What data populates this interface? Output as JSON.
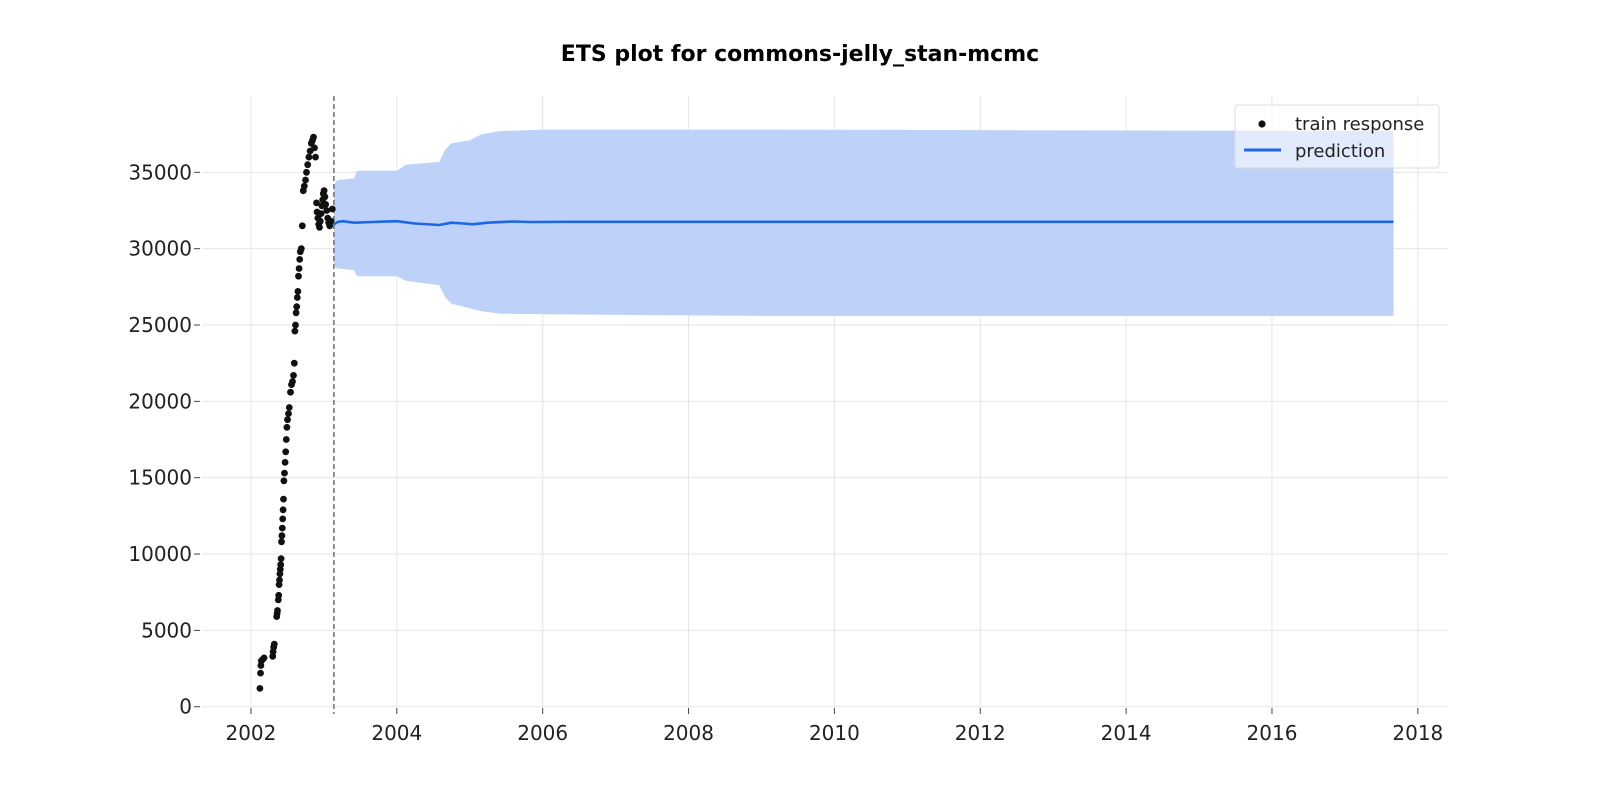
{
  "chart_data": {
    "type": "line",
    "title": "ETS plot for commons-jelly_stan-mcmc",
    "xlabel": "",
    "ylabel": "",
    "x_axis_type": "date",
    "xlim": [
      "2001-05-01",
      "2018-06-01"
    ],
    "ylim": [
      -1000,
      40000
    ],
    "x_ticks": [
      "2002",
      "2004",
      "2006",
      "2008",
      "2010",
      "2012",
      "2014",
      "2016",
      "2018"
    ],
    "y_ticks": [
      "0",
      "5000",
      "10000",
      "15000",
      "20000",
      "25000",
      "30000",
      "35000"
    ],
    "grid": true,
    "legend_position": "top-right",
    "train_end_date": "2003-02-20",
    "colors": {
      "train_points": "#111111",
      "prediction_line": "#1f66e5",
      "interval_fill": "#bed2f9",
      "divider": "#777777"
    },
    "series": [
      {
        "name": "train response",
        "kind": "scatter",
        "points": [
          [
            "2002-02-15",
            1200
          ],
          [
            "2002-02-18",
            2200
          ],
          [
            "2002-02-20",
            2700
          ],
          [
            "2002-02-22",
            3000
          ],
          [
            "2002-03-01",
            3100
          ],
          [
            "2002-03-08",
            3200
          ],
          [
            "2002-04-20",
            3300
          ],
          [
            "2002-04-22",
            3600
          ],
          [
            "2002-04-25",
            3900
          ],
          [
            "2002-04-28",
            4100
          ],
          [
            "2002-05-10",
            5900
          ],
          [
            "2002-05-12",
            6100
          ],
          [
            "2002-05-14",
            6300
          ],
          [
            "2002-05-18",
            7000
          ],
          [
            "2002-05-20",
            7300
          ],
          [
            "2002-05-22",
            8000
          ],
          [
            "2002-05-24",
            8300
          ],
          [
            "2002-05-26",
            8700
          ],
          [
            "2002-05-28",
            9000
          ],
          [
            "2002-05-30",
            9300
          ],
          [
            "2002-06-01",
            9700
          ],
          [
            "2002-06-03",
            10800
          ],
          [
            "2002-06-05",
            11200
          ],
          [
            "2002-06-07",
            11700
          ],
          [
            "2002-06-09",
            12300
          ],
          [
            "2002-06-11",
            12900
          ],
          [
            "2002-06-13",
            13600
          ],
          [
            "2002-06-15",
            14800
          ],
          [
            "2002-06-18",
            15300
          ],
          [
            "2002-06-21",
            16000
          ],
          [
            "2002-06-24",
            16700
          ],
          [
            "2002-06-27",
            17500
          ],
          [
            "2002-06-30",
            18300
          ],
          [
            "2002-07-03",
            18800
          ],
          [
            "2002-07-08",
            19200
          ],
          [
            "2002-07-12",
            19600
          ],
          [
            "2002-07-18",
            20600
          ],
          [
            "2002-07-23",
            21100
          ],
          [
            "2002-07-28",
            21300
          ],
          [
            "2002-08-02",
            21700
          ],
          [
            "2002-08-06",
            22500
          ],
          [
            "2002-08-09",
            24600
          ],
          [
            "2002-08-12",
            25000
          ],
          [
            "2002-08-15",
            25800
          ],
          [
            "2002-08-18",
            26200
          ],
          [
            "2002-08-21",
            26800
          ],
          [
            "2002-08-24",
            27200
          ],
          [
            "2002-08-27",
            28200
          ],
          [
            "2002-08-30",
            28700
          ],
          [
            "2002-09-02",
            29300
          ],
          [
            "2002-09-05",
            29800
          ],
          [
            "2002-09-10",
            30000
          ],
          [
            "2002-09-15",
            31500
          ],
          [
            "2002-09-20",
            33800
          ],
          [
            "2002-09-25",
            34100
          ],
          [
            "2002-10-01",
            34500
          ],
          [
            "2002-10-06",
            35000
          ],
          [
            "2002-10-12",
            35500
          ],
          [
            "2002-10-18",
            36000
          ],
          [
            "2002-10-24",
            36400
          ],
          [
            "2002-10-30",
            36900
          ],
          [
            "2002-11-05",
            37100
          ],
          [
            "2002-11-10",
            37300
          ],
          [
            "2002-11-15",
            36600
          ],
          [
            "2002-11-20",
            36000
          ],
          [
            "2002-11-25",
            33000
          ],
          [
            "2002-11-28",
            32400
          ],
          [
            "2002-12-02",
            32000
          ],
          [
            "2002-12-06",
            31600
          ],
          [
            "2002-12-10",
            31400
          ],
          [
            "2002-12-14",
            31800
          ],
          [
            "2002-12-18",
            32300
          ],
          [
            "2002-12-22",
            32800
          ],
          [
            "2002-12-26",
            33200
          ],
          [
            "2002-12-29",
            33600
          ],
          [
            "2003-01-02",
            33800
          ],
          [
            "2003-01-06",
            33400
          ],
          [
            "2003-01-10",
            32900
          ],
          [
            "2003-01-15",
            32500
          ],
          [
            "2003-01-20",
            32000
          ],
          [
            "2003-01-25",
            31700
          ],
          [
            "2003-01-30",
            31500
          ],
          [
            "2003-02-05",
            31800
          ],
          [
            "2003-02-12",
            32600
          ]
        ]
      },
      {
        "name": "prediction",
        "kind": "line",
        "points": [
          [
            "2003-02-20",
            31600
          ],
          [
            "2003-03-10",
            31750
          ],
          [
            "2003-04-05",
            31800
          ],
          [
            "2003-06-01",
            31700
          ],
          [
            "2003-09-01",
            31750
          ],
          [
            "2004-01-01",
            31800
          ],
          [
            "2004-04-01",
            31650
          ],
          [
            "2004-08-01",
            31550
          ],
          [
            "2004-10-01",
            31700
          ],
          [
            "2004-12-01",
            31650
          ],
          [
            "2005-01-15",
            31600
          ],
          [
            "2005-04-01",
            31700
          ],
          [
            "2005-08-01",
            31780
          ],
          [
            "2005-11-01",
            31750
          ],
          [
            "2006-06-01",
            31760
          ],
          [
            "2010-01-01",
            31760
          ],
          [
            "2014-01-01",
            31760
          ],
          [
            "2017-09-01",
            31760
          ]
        ]
      },
      {
        "name": "",
        "kind": "interval",
        "points": [
          [
            "2003-02-20",
            34200,
            28900
          ],
          [
            "2003-03-10",
            34500,
            28700
          ],
          [
            "2003-06-01",
            34600,
            28600
          ],
          [
            "2003-06-15",
            35100,
            28200
          ],
          [
            "2004-01-01",
            35100,
            28200
          ],
          [
            "2004-02-15",
            35500,
            27900
          ],
          [
            "2004-08-01",
            35700,
            27600
          ],
          [
            "2004-09-01",
            36500,
            26800
          ],
          [
            "2004-10-01",
            36900,
            26400
          ],
          [
            "2005-01-01",
            37100,
            26100
          ],
          [
            "2005-03-01",
            37500,
            25900
          ],
          [
            "2005-06-01",
            37700,
            25750
          ],
          [
            "2006-01-01",
            37800,
            25700
          ],
          [
            "2009-01-01",
            37800,
            25600
          ],
          [
            "2017-09-01",
            37700,
            25600
          ]
        ]
      }
    ]
  }
}
